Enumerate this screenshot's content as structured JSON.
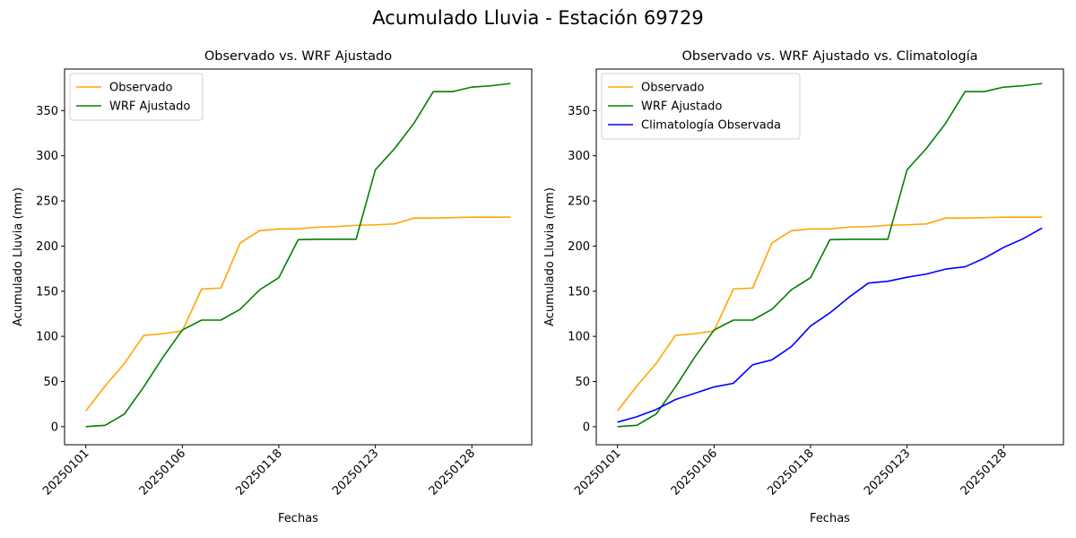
{
  "figure": {
    "suptitle": "Acumulado Lluvia - Estación 69729"
  },
  "chart_data": [
    {
      "type": "line",
      "title": "Observado vs. WRF Ajustado",
      "xlabel": "Fechas",
      "ylabel": "Acumulado Lluvia (mm)",
      "ylim": [
        -20,
        396
      ],
      "yticks": [
        0,
        50,
        100,
        150,
        200,
        250,
        300,
        350
      ],
      "xtick_labels": [
        "20250101",
        "20250106",
        "20250118",
        "20250123",
        "20250128"
      ],
      "xtick_positions": [
        0,
        5,
        10,
        15,
        20
      ],
      "legend": {
        "placement": "upper-left"
      },
      "grid": false,
      "x": [
        0,
        1,
        2,
        3,
        4,
        5,
        6,
        7,
        8,
        9,
        10,
        11,
        12,
        13,
        14,
        15,
        16,
        17,
        18,
        19,
        20,
        21,
        22
      ],
      "series": [
        {
          "name": "Observado",
          "color": "#ffa500",
          "values": [
            17.5,
            45,
            70,
            101,
            103,
            106,
            152.5,
            153.5,
            203.5,
            217,
            219,
            219,
            221,
            221.5,
            223,
            223.5,
            224.5,
            231,
            231,
            231.5,
            232,
            232,
            232
          ]
        },
        {
          "name": "WRF Ajustado",
          "color": "#008000",
          "values": [
            0,
            1.5,
            14,
            44,
            77,
            107,
            118,
            118,
            130,
            151.5,
            165,
            207,
            207.5,
            207.5,
            207.5,
            284.5,
            308,
            336,
            371,
            371,
            376,
            377.5,
            380
          ]
        }
      ]
    },
    {
      "type": "line",
      "title": "Observado vs. WRF Ajustado vs. Climatología",
      "xlabel": "Fechas",
      "ylabel": "Acumulado Lluvia (mm)",
      "ylim": [
        -20,
        396
      ],
      "yticks": [
        0,
        50,
        100,
        150,
        200,
        250,
        300,
        350
      ],
      "xtick_labels": [
        "20250101",
        "20250106",
        "20250118",
        "20250123",
        "20250128"
      ],
      "xtick_positions": [
        0,
        5,
        10,
        15,
        20
      ],
      "legend": {
        "placement": "upper-left"
      },
      "grid": false,
      "x": [
        0,
        1,
        2,
        3,
        4,
        5,
        6,
        7,
        8,
        9,
        10,
        11,
        12,
        13,
        14,
        15,
        16,
        17,
        18,
        19,
        20,
        21,
        22
      ],
      "series": [
        {
          "name": "Observado",
          "color": "#ffa500",
          "values": [
            17.5,
            45,
            70,
            101,
            103,
            106,
            152.5,
            153.5,
            203.5,
            217,
            219,
            219,
            221,
            221.5,
            223,
            223.5,
            224.5,
            231,
            231,
            231.5,
            232,
            232,
            232
          ]
        },
        {
          "name": "WRF Ajustado",
          "color": "#008000",
          "values": [
            0,
            1.5,
            14,
            44,
            77,
            107,
            118,
            118,
            130,
            151.5,
            165,
            207,
            207.5,
            207.5,
            207.5,
            284.5,
            308,
            336,
            371,
            371,
            376,
            377.5,
            380
          ]
        },
        {
          "name": "Climatología Observada",
          "color": "#0000ff",
          "values": [
            5,
            11,
            19,
            30,
            37,
            44,
            48,
            68.5,
            74,
            88.5,
            111.5,
            126,
            143.5,
            159,
            161,
            165.5,
            169,
            174.5,
            177,
            186.5,
            198.5,
            208,
            220
          ]
        }
      ]
    }
  ]
}
